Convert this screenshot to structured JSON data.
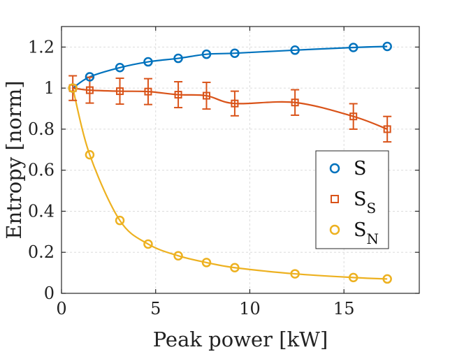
{
  "chart_data": {
    "type": "line",
    "title": "",
    "xlabel": "Peak power [kW]",
    "ylabel": "Entropy [norm]",
    "xlim": [
      0,
      19
    ],
    "ylim": [
      0,
      1.3
    ],
    "grid": true,
    "legend_position": "center-right",
    "xticks": [
      0,
      5,
      10,
      15
    ],
    "xtick_labels": [
      "0",
      "5",
      "10",
      "15"
    ],
    "yticks": [
      0,
      0.2,
      0.4,
      0.6,
      0.8,
      1.0,
      1.2
    ],
    "ytick_labels": [
      "0",
      "0.2",
      "0.4",
      "0.6",
      "0.8",
      "1",
      "1.2"
    ],
    "series": [
      {
        "name": "S",
        "label": "S",
        "subscript": "",
        "marker": "circle",
        "color": "#0072BD",
        "x": [
          0.6,
          1.5,
          3.1,
          4.6,
          6.2,
          7.7,
          9.2,
          12.4,
          15.5,
          17.3
        ],
        "y": [
          1.0,
          1.055,
          1.1,
          1.128,
          1.145,
          1.165,
          1.17,
          1.185,
          1.198,
          1.203
        ]
      },
      {
        "name": "S_S",
        "label": "S",
        "subscript": "S",
        "marker": "square",
        "color": "#D95319",
        "x": [
          0.6,
          1.5,
          3.1,
          4.6,
          6.2,
          7.7,
          9.2,
          12.4,
          15.5,
          17.3
        ],
        "y": [
          1.0,
          0.99,
          0.985,
          0.983,
          0.968,
          0.963,
          0.925,
          0.93,
          0.862,
          0.8
        ],
        "error": [
          0.06,
          0.063,
          0.063,
          0.063,
          0.063,
          0.065,
          0.06,
          0.062,
          0.062,
          0.062
        ]
      },
      {
        "name": "S_N",
        "label": "S",
        "subscript": "N",
        "marker": "circle",
        "color": "#EDB120",
        "x": [
          0.6,
          1.5,
          3.1,
          4.6,
          6.2,
          7.7,
          9.2,
          12.4,
          15.5,
          17.3
        ],
        "y": [
          1.0,
          0.675,
          0.355,
          0.24,
          0.183,
          0.15,
          0.125,
          0.095,
          0.077,
          0.07
        ]
      }
    ]
  }
}
